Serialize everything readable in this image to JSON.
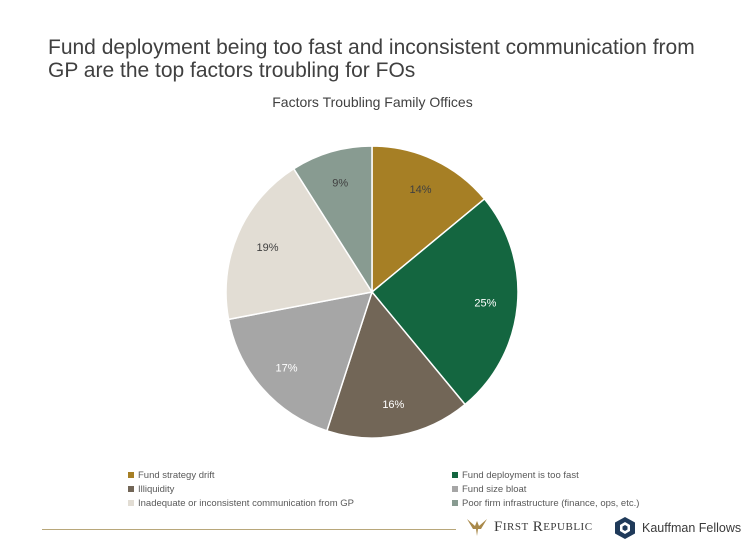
{
  "page": {
    "title": "Fund deployment being too fast and inconsistent communication from GP are the top factors troubling for FOs"
  },
  "chart_data": {
    "type": "pie",
    "title": "Factors Troubling Family Offices",
    "slices": [
      {
        "label": "Fund strategy drift",
        "value": 14,
        "display": "14%",
        "color": "#a67f25",
        "label_color": "#404040"
      },
      {
        "label": "Fund deployment is too fast",
        "value": 25,
        "display": "25%",
        "color": "#146640",
        "label_color": "#ffffff"
      },
      {
        "label": "Illiquidity",
        "value": 16,
        "display": "16%",
        "color": "#726657",
        "label_color": "#ffffff"
      },
      {
        "label": "Fund size bloat",
        "value": 17,
        "display": "17%",
        "color": "#a6a6a6",
        "label_color": "#ffffff"
      },
      {
        "label": "Inadequate or inconsistent communication from GP",
        "value": 19,
        "display": "19%",
        "color": "#e2ddd4",
        "label_color": "#404040"
      },
      {
        "label": "Poor firm infrastructure (finance, ops, etc.)",
        "value": 9,
        "display": "9%",
        "color": "#889b91",
        "label_color": "#404040"
      }
    ],
    "legend_position": "bottom"
  },
  "footer": {
    "logo_first": "F",
    "logo_irst": "IRST",
    "logo_r": "R",
    "logo_epublic": "EPUBLIC",
    "kauffman": "Kauffman Fellows"
  }
}
